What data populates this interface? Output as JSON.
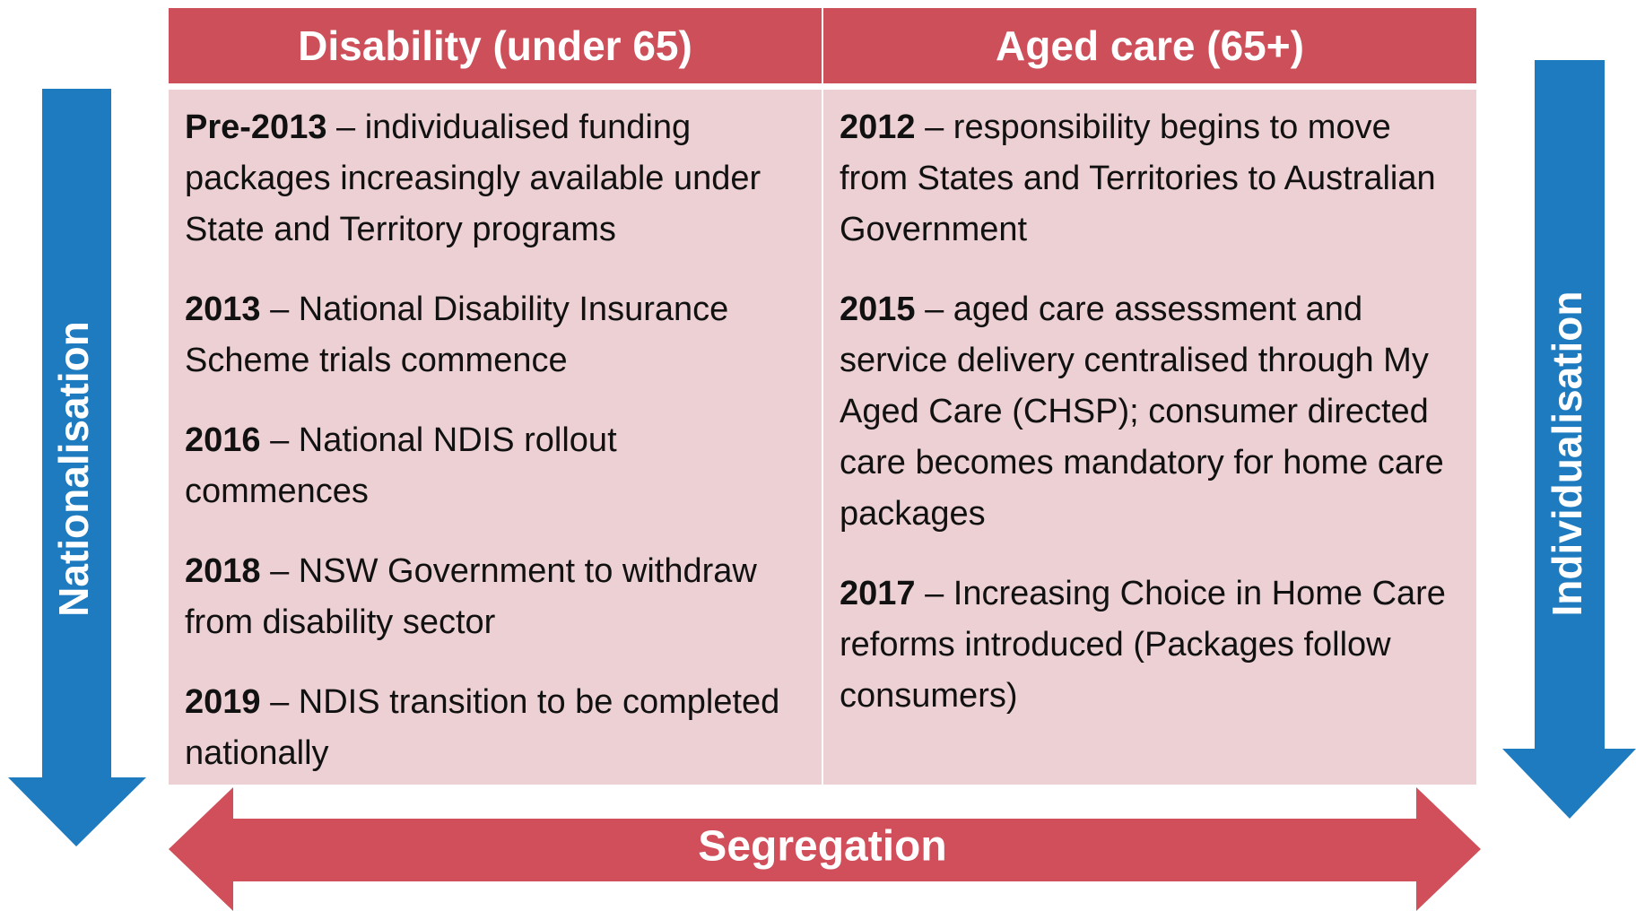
{
  "columns": [
    {
      "header": "Disability (under 65)",
      "entries": [
        {
          "year": "Pre-2013",
          "text": "– individualised funding packages increasingly available under State and Territory programs"
        },
        {
          "year": "2013",
          "text": "– National Disability Insurance Scheme trials commence"
        },
        {
          "year": "2016",
          "text": "– National NDIS rollout commences"
        },
        {
          "year": "2018",
          "text": "– NSW Government to withdraw from disability sector"
        },
        {
          "year": "2019",
          "text": "– NDIS transition to be completed nationally"
        }
      ]
    },
    {
      "header": "Aged care (65+)",
      "entries": [
        {
          "year": "2012",
          "text": "– responsibility begins to move from States and Territories to Australian Government"
        },
        {
          "year": "2015",
          "text": "– aged care assessment and service delivery centralised through My Aged Care (CHSP); consumer directed care becomes mandatory for home care packages"
        },
        {
          "year": "2017",
          "text": "– Increasing Choice in Home Care reforms introduced (Packages follow consumers)"
        }
      ]
    }
  ],
  "arrows": {
    "left": "Nationalisation",
    "right": "Individualisation",
    "bottom": "Segregation"
  }
}
